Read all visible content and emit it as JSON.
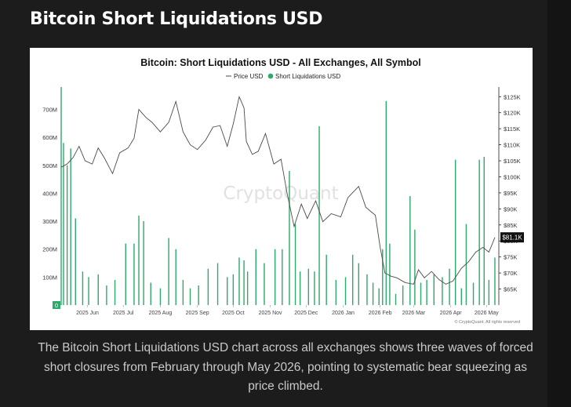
{
  "page": {
    "title": "Bitcoin Short Liquidations USD",
    "caption": "The Bitcoin Short Liquidations USD chart across all exchanges shows three waves of forced short closures from February through May 2026, pointing to systematic bear squeezing as price climbed."
  },
  "chart_data": {
    "type": "bar",
    "title": "Bitcoin: Short Liquidations USD - All Exchanges, All Symbol",
    "legend": {
      "placement": "top-center",
      "entries": [
        "Price USD",
        "Short Liquidations USD"
      ]
    },
    "watermark": "CryptoQuant",
    "credit": "© CryptoQuant. All rights reserved",
    "colors": {
      "price": "#4a4a4a",
      "liquidations": "#2fa86a",
      "current_badge": "#111111"
    },
    "x_tick_labels": [
      "2025 Jun",
      "2025 Jul",
      "2025 Aug",
      "2025 Sep",
      "2025 Oct",
      "2025 Nov",
      "2025 Dec",
      "2026 Jan",
      "2026 Feb",
      "2026 Mar",
      "2026 Apr",
      "2026 May"
    ],
    "xlim": [
      "2025-05-10",
      "2026-05-10"
    ],
    "y_left": {
      "label": "Short Liquidations USD",
      "ylim": [
        0,
        780000000
      ],
      "ticks": [
        0,
        100000000,
        200000000,
        300000000,
        400000000,
        500000000,
        600000000,
        700000000
      ],
      "tick_labels": [
        "0",
        "100M",
        "200M",
        "300M",
        "400M",
        "500M",
        "600M",
        "700M"
      ]
    },
    "y_right": {
      "label": "Price USD",
      "ylim": [
        60000,
        128000
      ],
      "ticks": [
        65000,
        70000,
        75000,
        80000,
        85000,
        90000,
        95000,
        100000,
        105000,
        110000,
        115000,
        120000,
        125000
      ],
      "tick_labels": [
        "$65K",
        "$70K",
        "$75K",
        "$80K",
        "$85K",
        "$90K",
        "$95K",
        "$100K",
        "$105K",
        "$110K",
        "$115K",
        "$120K",
        "$125K"
      ]
    },
    "current_price_label": "$81.1K",
    "grid": false,
    "price_series": {
      "name": "Price USD",
      "points": [
        [
          "2025-05-10",
          103000
        ],
        [
          "2025-05-15",
          104000
        ],
        [
          "2025-05-20",
          106000
        ],
        [
          "2025-05-25",
          109500
        ],
        [
          "2025-05-30",
          105000
        ],
        [
          "2025-06-05",
          104000
        ],
        [
          "2025-06-10",
          109000
        ],
        [
          "2025-06-15",
          106000
        ],
        [
          "2025-06-22",
          101000
        ],
        [
          "2025-06-28",
          107500
        ],
        [
          "2025-07-05",
          109000
        ],
        [
          "2025-07-10",
          112000
        ],
        [
          "2025-07-14",
          121000
        ],
        [
          "2025-07-20",
          118500
        ],
        [
          "2025-07-25",
          117000
        ],
        [
          "2025-08-01",
          114000
        ],
        [
          "2025-08-08",
          117000
        ],
        [
          "2025-08-14",
          123500
        ],
        [
          "2025-08-20",
          114000
        ],
        [
          "2025-08-26",
          110000
        ],
        [
          "2025-09-01",
          108500
        ],
        [
          "2025-09-08",
          111500
        ],
        [
          "2025-09-14",
          115500
        ],
        [
          "2025-09-20",
          116000
        ],
        [
          "2025-09-26",
          109500
        ],
        [
          "2025-10-01",
          116500
        ],
        [
          "2025-10-06",
          125000
        ],
        [
          "2025-10-10",
          121500
        ],
        [
          "2025-10-12",
          111000
        ],
        [
          "2025-10-17",
          107000
        ],
        [
          "2025-10-22",
          108000
        ],
        [
          "2025-10-28",
          113500
        ],
        [
          "2025-11-04",
          104000
        ],
        [
          "2025-11-10",
          105500
        ],
        [
          "2025-11-15",
          95000
        ],
        [
          "2025-11-21",
          84500
        ],
        [
          "2025-11-27",
          91500
        ],
        [
          "2025-12-02",
          87000
        ],
        [
          "2025-12-09",
          92500
        ],
        [
          "2025-12-15",
          86000
        ],
        [
          "2025-12-22",
          88500
        ],
        [
          "2025-12-30",
          87500
        ],
        [
          "2026-01-05",
          93500
        ],
        [
          "2026-01-14",
          97000
        ],
        [
          "2026-01-20",
          90500
        ],
        [
          "2026-01-28",
          88000
        ],
        [
          "2026-02-01",
          78000
        ],
        [
          "2026-02-05",
          70000
        ],
        [
          "2026-02-10",
          69000
        ],
        [
          "2026-02-15",
          68500
        ],
        [
          "2026-02-22",
          67000
        ],
        [
          "2026-03-01",
          66500
        ],
        [
          "2026-03-05",
          71000
        ],
        [
          "2026-03-10",
          68500
        ],
        [
          "2026-03-16",
          70500
        ],
        [
          "2026-03-22",
          68000
        ],
        [
          "2026-03-28",
          66500
        ],
        [
          "2026-04-03",
          67500
        ],
        [
          "2026-04-10",
          71500
        ],
        [
          "2026-04-16",
          73500
        ],
        [
          "2026-04-22",
          76500
        ],
        [
          "2026-04-28",
          78000
        ],
        [
          "2026-05-03",
          76500
        ],
        [
          "2026-05-08",
          81100
        ]
      ]
    },
    "liquidation_series": {
      "name": "Short Liquidations USD",
      "points": [
        [
          "2025-05-10",
          780000000
        ],
        [
          "2025-05-12",
          580000000
        ],
        [
          "2025-05-15",
          500000000
        ],
        [
          "2025-05-18",
          560000000
        ],
        [
          "2025-05-22",
          310000000
        ],
        [
          "2025-05-28",
          120000000
        ],
        [
          "2025-06-02",
          100000000
        ],
        [
          "2025-06-10",
          110000000
        ],
        [
          "2025-06-17",
          70000000
        ],
        [
          "2025-06-24",
          90000000
        ],
        [
          "2025-07-03",
          220000000
        ],
        [
          "2025-07-10",
          220000000
        ],
        [
          "2025-07-14",
          320000000
        ],
        [
          "2025-07-18",
          300000000
        ],
        [
          "2025-07-24",
          80000000
        ],
        [
          "2025-08-01",
          60000000
        ],
        [
          "2025-08-08",
          240000000
        ],
        [
          "2025-08-14",
          200000000
        ],
        [
          "2025-08-20",
          90000000
        ],
        [
          "2025-08-26",
          60000000
        ],
        [
          "2025-09-02",
          70000000
        ],
        [
          "2025-09-10",
          130000000
        ],
        [
          "2025-09-18",
          150000000
        ],
        [
          "2025-09-26",
          100000000
        ],
        [
          "2025-10-01",
          110000000
        ],
        [
          "2025-10-06",
          170000000
        ],
        [
          "2025-10-10",
          160000000
        ],
        [
          "2025-10-13",
          120000000
        ],
        [
          "2025-10-20",
          200000000
        ],
        [
          "2025-10-27",
          150000000
        ],
        [
          "2025-11-05",
          200000000
        ],
        [
          "2025-11-11",
          200000000
        ],
        [
          "2025-11-17",
          480000000
        ],
        [
          "2025-11-22",
          290000000
        ],
        [
          "2025-11-26",
          120000000
        ],
        [
          "2025-12-03",
          130000000
        ],
        [
          "2025-12-08",
          120000000
        ],
        [
          "2025-12-12",
          640000000
        ],
        [
          "2025-12-18",
          180000000
        ],
        [
          "2025-12-26",
          90000000
        ],
        [
          "2026-01-03",
          100000000
        ],
        [
          "2026-01-09",
          180000000
        ],
        [
          "2026-01-14",
          150000000
        ],
        [
          "2026-01-21",
          110000000
        ],
        [
          "2026-01-26",
          80000000
        ],
        [
          "2026-01-31",
          60000000
        ],
        [
          "2026-02-03",
          200000000
        ],
        [
          "2026-02-06",
          730000000
        ],
        [
          "2026-02-09",
          220000000
        ],
        [
          "2026-02-14",
          40000000
        ],
        [
          "2026-02-20",
          70000000
        ],
        [
          "2026-02-26",
          390000000
        ],
        [
          "2026-03-02",
          270000000
        ],
        [
          "2026-03-07",
          80000000
        ],
        [
          "2026-03-12",
          90000000
        ],
        [
          "2026-03-18",
          110000000
        ],
        [
          "2026-03-25",
          100000000
        ],
        [
          "2026-03-31",
          130000000
        ],
        [
          "2026-04-05",
          520000000
        ],
        [
          "2026-04-10",
          60000000
        ],
        [
          "2026-04-14",
          290000000
        ],
        [
          "2026-04-20",
          80000000
        ],
        [
          "2026-04-25",
          520000000
        ],
        [
          "2026-04-29",
          530000000
        ],
        [
          "2026-05-03",
          90000000
        ],
        [
          "2026-05-08",
          170000000
        ]
      ]
    }
  }
}
